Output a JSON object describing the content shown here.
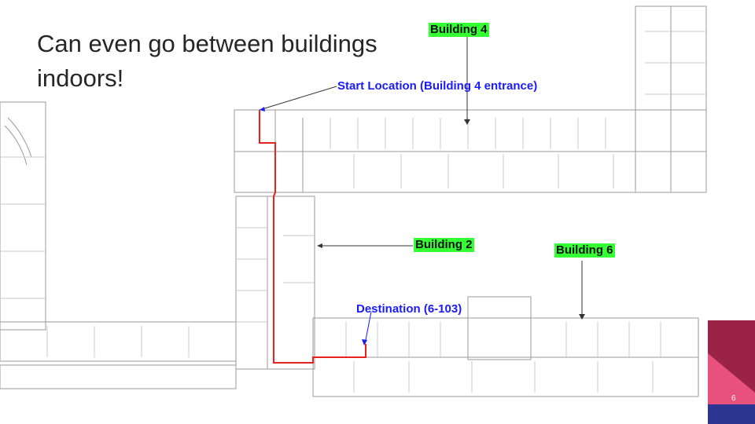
{
  "slide": {
    "title": "Can even go between buildings indoors!",
    "page_number": "6"
  },
  "labels": {
    "building4": "Building 4",
    "building2": "Building 2",
    "building6": "Building 6",
    "start": "Start Location (Building 4 entrance)",
    "destination": "Destination (6-103)"
  },
  "colors": {
    "route": "#e8231e",
    "label_highlight": "#33ff33",
    "label_blue": "#1a1aff",
    "corner_maroon": "#9c2348",
    "corner_pink": "#e8517c",
    "corner_navy": "#2d3592"
  }
}
